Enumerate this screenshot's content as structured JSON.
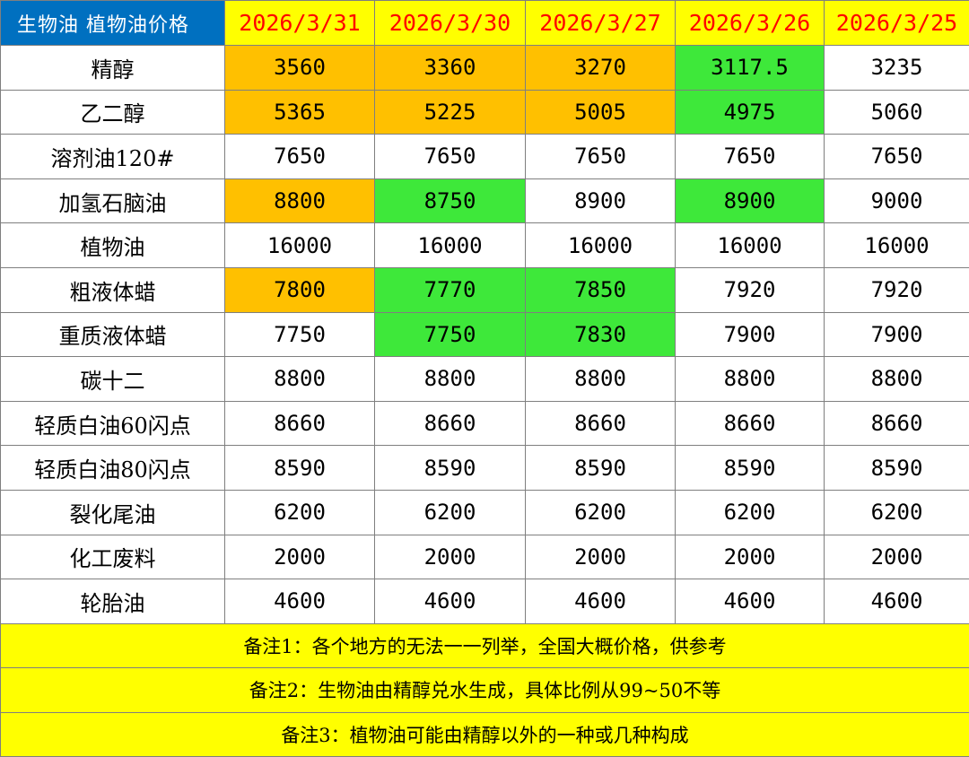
{
  "table": {
    "title": "生物油 植物油价格",
    "dates": [
      "2026/3/31",
      "2026/3/30",
      "2026/3/27",
      "2026/3/26",
      "2026/3/25"
    ],
    "colors": {
      "title_bg": "#0070c0",
      "header_bg": "#ffff00",
      "header_text": "#ff0000",
      "up": "#ffc000",
      "down": "#3ee83a",
      "note_bg": "#ffff00"
    },
    "rows": [
      {
        "name": "精醇",
        "values": [
          "3560",
          "3360",
          "3270",
          "3117.5",
          "3235"
        ],
        "status": [
          "up",
          "up",
          "up",
          "down",
          ""
        ]
      },
      {
        "name": "乙二醇",
        "values": [
          "5365",
          "5225",
          "5005",
          "4975",
          "5060"
        ],
        "status": [
          "up",
          "up",
          "up",
          "down",
          ""
        ]
      },
      {
        "name": "溶剂油120#",
        "values": [
          "7650",
          "7650",
          "7650",
          "7650",
          "7650"
        ],
        "status": [
          "",
          "",
          "",
          "",
          ""
        ]
      },
      {
        "name": "加氢石脑油",
        "values": [
          "8800",
          "8750",
          "8900",
          "8900",
          "9000"
        ],
        "status": [
          "up",
          "down",
          "",
          "down",
          ""
        ]
      },
      {
        "name": "植物油",
        "values": [
          "16000",
          "16000",
          "16000",
          "16000",
          "16000"
        ],
        "status": [
          "",
          "",
          "",
          "",
          ""
        ]
      },
      {
        "name": "粗液体蜡",
        "values": [
          "7800",
          "7770",
          "7850",
          "7920",
          "7920"
        ],
        "status": [
          "up",
          "down",
          "down",
          "",
          ""
        ]
      },
      {
        "name": "重质液体蜡",
        "values": [
          "7750",
          "7750",
          "7830",
          "7900",
          "7900"
        ],
        "status": [
          "",
          "down",
          "down",
          "",
          ""
        ]
      },
      {
        "name": "碳十二",
        "values": [
          "8800",
          "8800",
          "8800",
          "8800",
          "8800"
        ],
        "status": [
          "",
          "",
          "",
          "",
          ""
        ]
      },
      {
        "name": "轻质白油60闪点",
        "values": [
          "8660",
          "8660",
          "8660",
          "8660",
          "8660"
        ],
        "status": [
          "",
          "",
          "",
          "",
          ""
        ]
      },
      {
        "name": "轻质白油80闪点",
        "values": [
          "8590",
          "8590",
          "8590",
          "8590",
          "8590"
        ],
        "status": [
          "",
          "",
          "",
          "",
          ""
        ]
      },
      {
        "name": "裂化尾油",
        "values": [
          "6200",
          "6200",
          "6200",
          "6200",
          "6200"
        ],
        "status": [
          "",
          "",
          "",
          "",
          ""
        ]
      },
      {
        "name": "化工废料",
        "values": [
          "2000",
          "2000",
          "2000",
          "2000",
          "2000"
        ],
        "status": [
          "",
          "",
          "",
          "",
          ""
        ]
      },
      {
        "name": "轮胎油",
        "values": [
          "4600",
          "4600",
          "4600",
          "4600",
          "4600"
        ],
        "status": [
          "",
          "",
          "",
          "",
          ""
        ]
      }
    ],
    "notes": [
      "备注1：各个地方的无法一一列举，全国大概价格，供参考",
      "备注2：生物油由精醇兑水生成，具体比例从99~50不等",
      "备注3：植物油可能由精醇以外的一种或几种构成"
    ]
  }
}
